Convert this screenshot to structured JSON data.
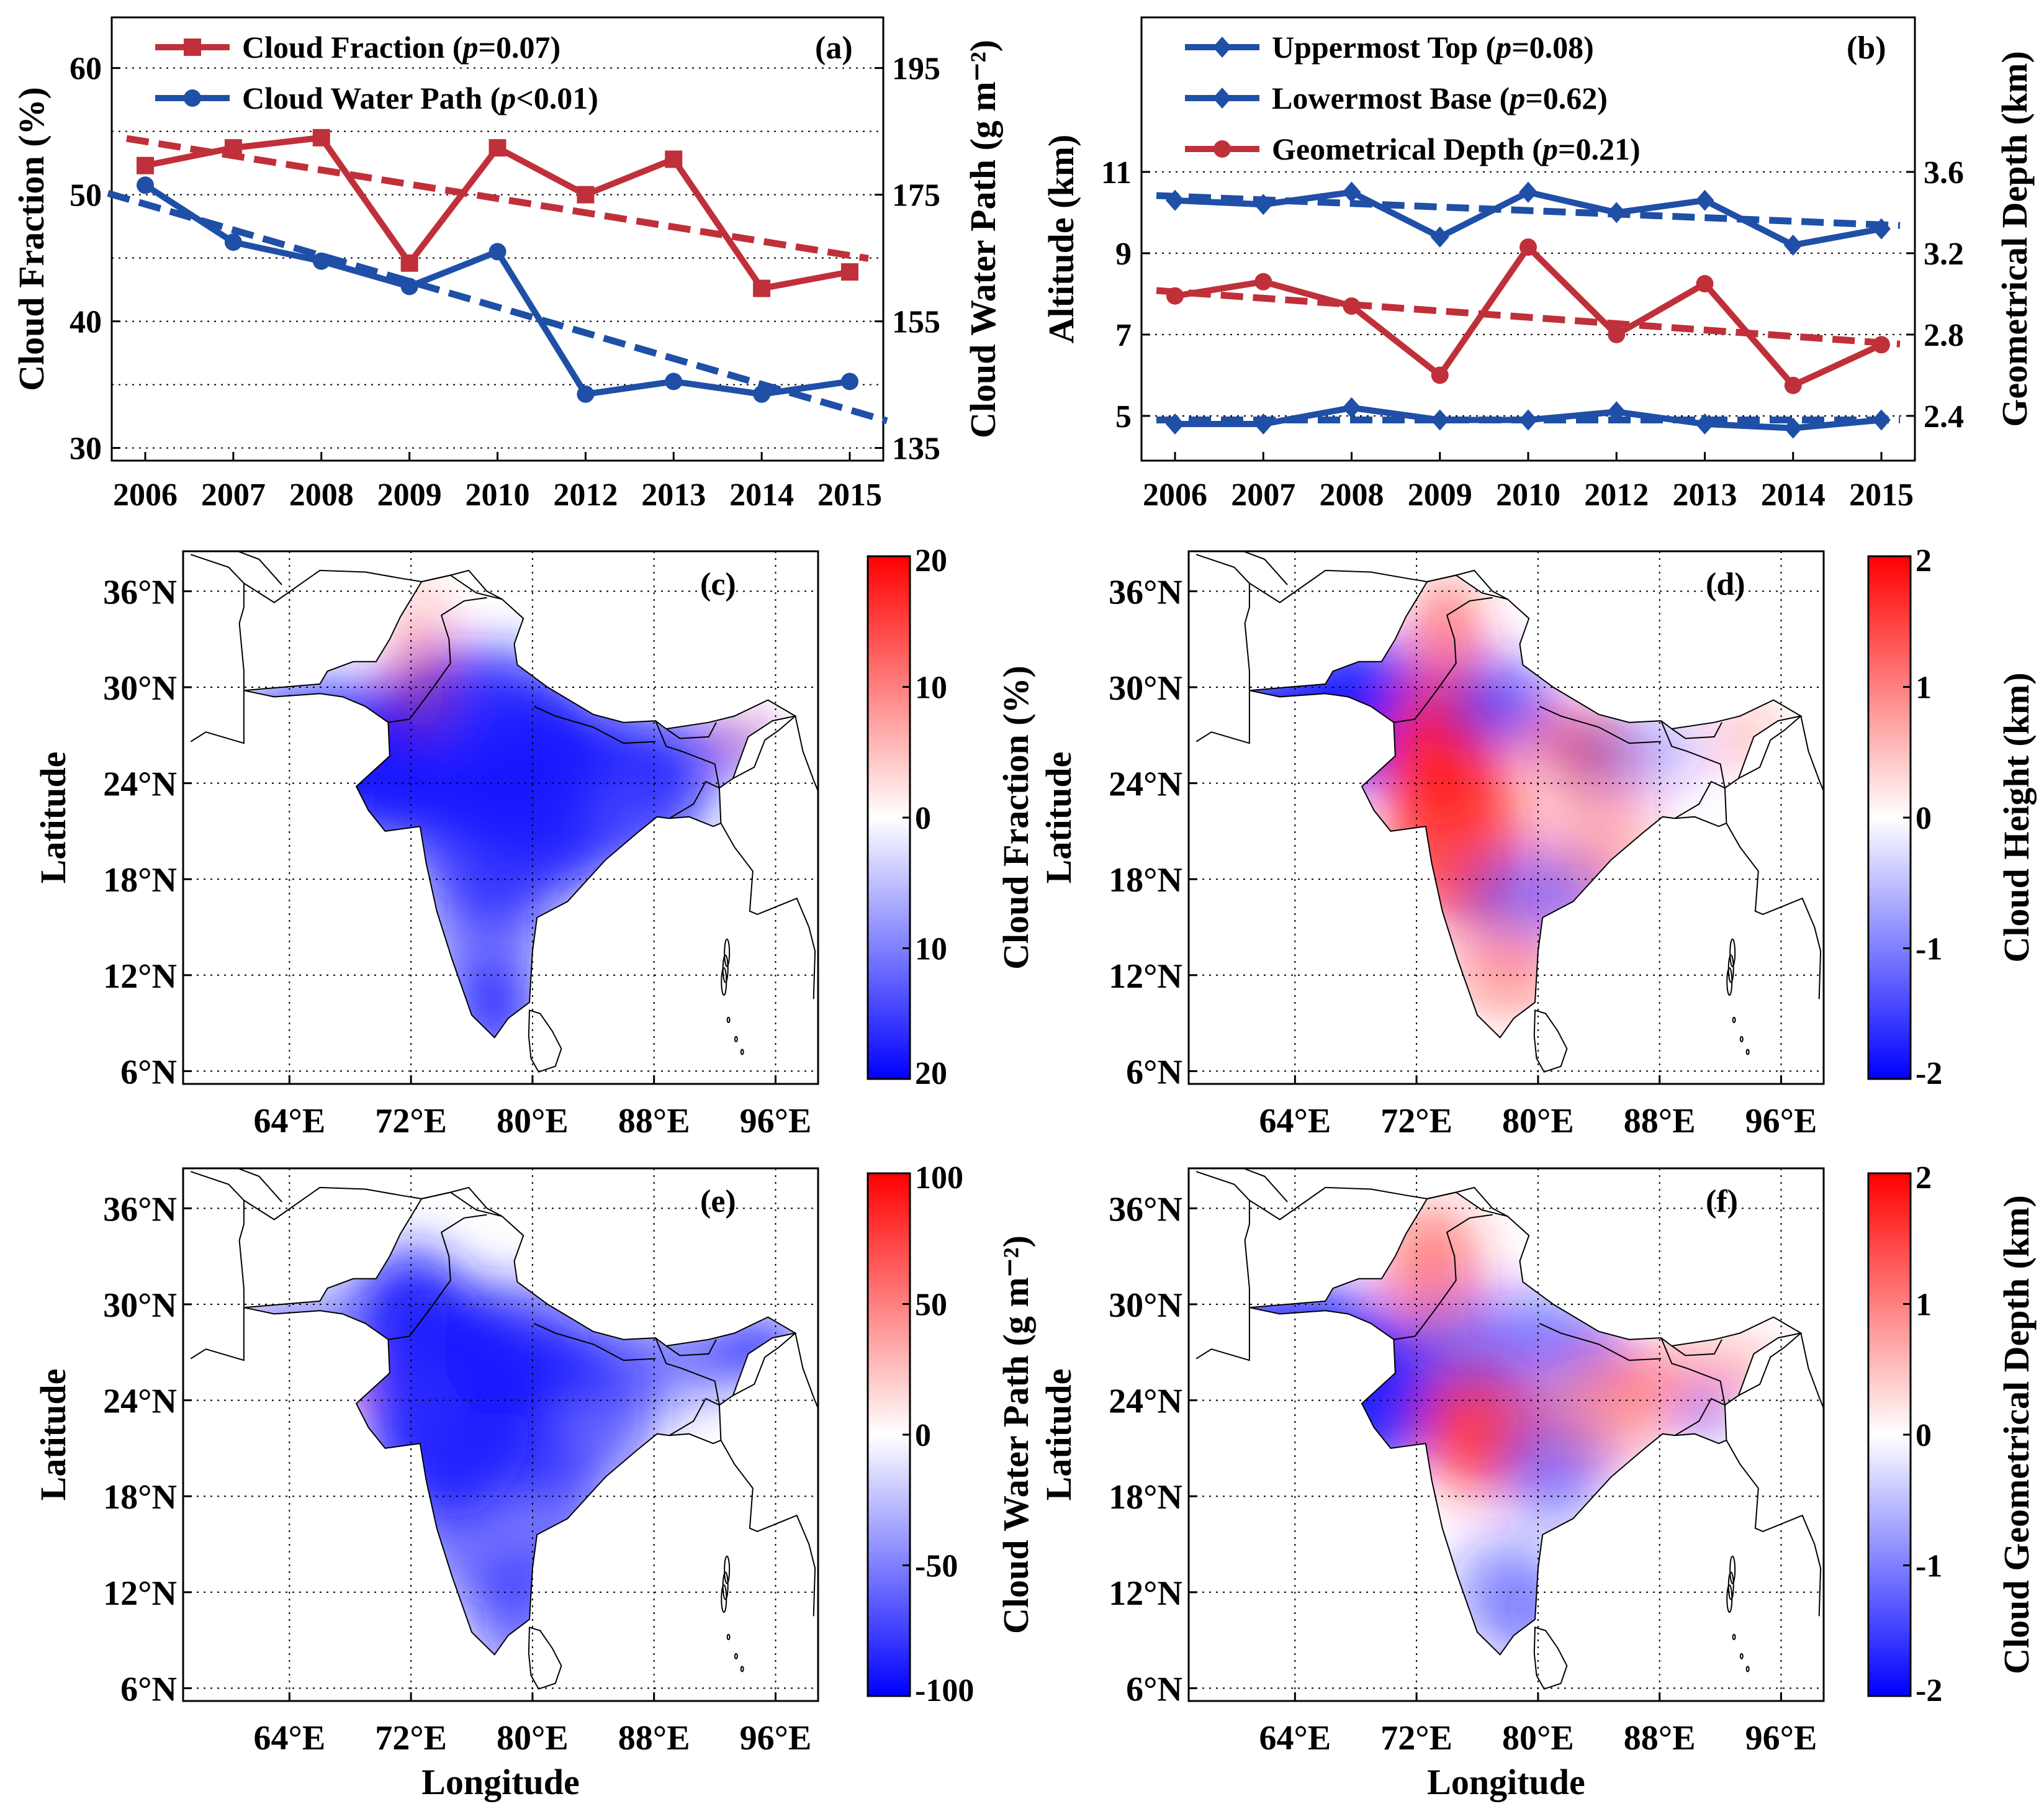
{
  "colors": {
    "red": "#c0303a",
    "blue": "#1f4fa6",
    "cmap_red": "#ff0000",
    "cmap_blue": "#0000ff"
  },
  "xtick_labels": [
    "2006",
    "2007",
    "2008",
    "2009",
    "2010",
    "2012",
    "2013",
    "2014",
    "2015"
  ],
  "lat_labels": [
    "36°N",
    "30°N",
    "24°N",
    "18°N",
    "12°N",
    "6°N"
  ],
  "lon_labels": [
    "64°E",
    "72°E",
    "80°E",
    "88°E",
    "96°E"
  ],
  "axis_labels": {
    "latitude": "Latitude",
    "longitude": "Longitude"
  },
  "chart_data": [
    {
      "panel": "a",
      "type": "line",
      "tag": "(a)",
      "ylabel_left": "Cloud Fraction (%)",
      "ylabel_right": "Cloud Water Path (g m⁻²)",
      "ylim_left": [
        29,
        64
      ],
      "yticks_left": [
        30,
        40,
        50,
        60
      ],
      "ylim_right": [
        133,
        203
      ],
      "yticks_right": [
        135,
        155,
        175,
        195
      ],
      "series": [
        {
          "name": "Cloud Fraction",
          "legend": "Cloud Fraction (p=0.07)",
          "p": "=0.07",
          "axis": "left",
          "marker": "square",
          "values": [
            52.3,
            53.7,
            54.5,
            44.6,
            53.7,
            50.0,
            52.8,
            42.6,
            43.9
          ],
          "trend": [
            54.2,
            45.2
          ]
        },
        {
          "name": "Cloud Water Path",
          "legend": "Cloud Water Path (p<0.01)",
          "p": "<0.01",
          "axis": "right",
          "marker": "circle",
          "values": [
            176.5,
            167.5,
            164.5,
            160.5,
            166.0,
            143.5,
            145.5,
            143.5,
            145.5
          ],
          "trend": [
            173.5,
            141.0
          ]
        }
      ]
    },
    {
      "panel": "b",
      "type": "line",
      "tag": "(b)",
      "ylabel_left": "Altitude (km)",
      "ylabel_right": "Geometrical Depth (km)",
      "ylim_left": [
        3.9,
        14.8
      ],
      "yticks_left": [
        5,
        7,
        9,
        11
      ],
      "ylim_right": [
        2.18,
        4.36
      ],
      "yticks_right": [
        2.4,
        2.8,
        3.2,
        3.6
      ],
      "series": [
        {
          "name": "Uppermost Top",
          "legend": "Uppermost Top (p=0.08)",
          "p": "=0.08",
          "axis": "left",
          "marker": "diamond",
          "values": [
            10.3,
            10.2,
            10.5,
            9.4,
            10.5,
            10.0,
            10.3,
            9.2,
            9.6
          ],
          "trend": [
            10.4,
            9.7
          ]
        },
        {
          "name": "Lowermost Base",
          "legend": "Lowermost Base (p=0.62)",
          "p": "=0.62",
          "axis": "left",
          "marker": "diamond",
          "values": [
            4.8,
            4.8,
            5.2,
            4.9,
            4.9,
            5.1,
            4.8,
            4.7,
            4.9
          ],
          "trend": [
            4.9,
            4.9
          ]
        },
        {
          "name": "Geometrical Depth",
          "legend": "Geometrical Depth (p=0.21)",
          "p": "=0.21",
          "axis": "right",
          "marker": "circle",
          "values": [
            2.99,
            3.06,
            2.94,
            2.6,
            3.23,
            2.8,
            3.05,
            2.55,
            2.75
          ],
          "trend": [
            3.01,
            2.76
          ]
        }
      ]
    },
    {
      "panel": "c",
      "type": "heatmap",
      "tag": "(c)",
      "colorbar_label": "Cloud Fraction (%)",
      "colorbar_ticks": [
        "20",
        "10",
        "0",
        "10",
        "20"
      ],
      "range": [
        -20,
        20
      ]
    },
    {
      "panel": "d",
      "type": "heatmap",
      "tag": "(d)",
      "colorbar_label": "Cloud Height (km)",
      "colorbar_ticks": [
        "2",
        "1",
        "0",
        "-1",
        "-2"
      ],
      "range": [
        -2,
        2
      ]
    },
    {
      "panel": "e",
      "type": "heatmap",
      "tag": "(e)",
      "colorbar_label": "Cloud Water Path (g m⁻²)",
      "colorbar_ticks": [
        "100",
        "50",
        "0",
        "-50",
        "-100"
      ],
      "range": [
        -100,
        100
      ]
    },
    {
      "panel": "f",
      "type": "heatmap",
      "tag": "(f)",
      "colorbar_label": "Cloud Geometrical Depth (km)",
      "colorbar_ticks": [
        "2",
        "1",
        "0",
        "-1",
        "-2"
      ],
      "range": [
        -2,
        2
      ]
    }
  ]
}
